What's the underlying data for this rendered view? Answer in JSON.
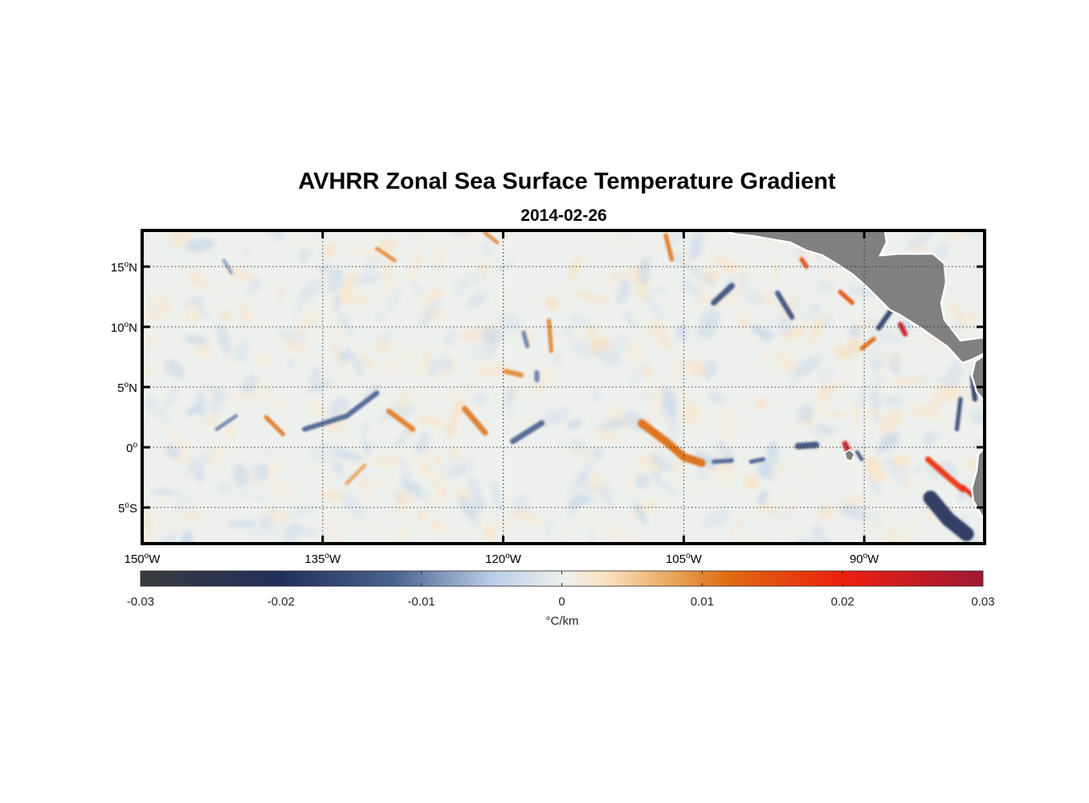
{
  "chart_data": {
    "type": "heatmap",
    "title": "AVHRR Zonal Sea Surface Temperature Gradient",
    "subtitle": "2014-02-26",
    "x_axis": {
      "range": [
        -150,
        -80
      ],
      "ticks": [
        {
          "value": -150,
          "label": "150",
          "suffix": "W"
        },
        {
          "value": -135,
          "label": "135",
          "suffix": "W"
        },
        {
          "value": -120,
          "label": "120",
          "suffix": "W"
        },
        {
          "value": -105,
          "label": "105",
          "suffix": "W"
        },
        {
          "value": -90,
          "label": "90",
          "suffix": "W"
        }
      ]
    },
    "y_axis": {
      "range": [
        -8,
        18
      ],
      "ticks": [
        {
          "value": 15,
          "label": "15",
          "suffix": "N"
        },
        {
          "value": 10,
          "label": "10",
          "suffix": "N"
        },
        {
          "value": 5,
          "label": "5",
          "suffix": "N"
        },
        {
          "value": 0,
          "label": "0",
          "suffix": ""
        },
        {
          "value": -5,
          "label": "5",
          "suffix": "S"
        }
      ]
    },
    "colorbar": {
      "label": "°C/km",
      "range": [
        -0.03,
        0.03
      ],
      "ticks": [
        {
          "value": -0.03,
          "label": "-0.03"
        },
        {
          "value": -0.02,
          "label": "-0.02"
        },
        {
          "value": -0.01,
          "label": "-0.01"
        },
        {
          "value": 0,
          "label": "0"
        },
        {
          "value": 0.01,
          "label": "0.01"
        },
        {
          "value": 0.02,
          "label": "0.02"
        },
        {
          "value": 0.03,
          "label": "0.03"
        }
      ],
      "stops": [
        {
          "value": -0.03,
          "color": "#3a3b3f"
        },
        {
          "value": -0.02,
          "color": "#22305a"
        },
        {
          "value": -0.012,
          "color": "#4a628f"
        },
        {
          "value": -0.005,
          "color": "#b9cde6"
        },
        {
          "value": 0,
          "color": "#eef0ed"
        },
        {
          "value": 0.003,
          "color": "#fbe3c4"
        },
        {
          "value": 0.008,
          "color": "#e8a45a"
        },
        {
          "value": 0.012,
          "color": "#de6a10"
        },
        {
          "value": 0.02,
          "color": "#ee1f10"
        },
        {
          "value": 0.03,
          "color": "#9e1837"
        }
      ]
    },
    "features": [
      {
        "name": "tongue-110-1",
        "type": "pos",
        "value": 0.012,
        "points": [
          [
            -108.5,
            2
          ],
          [
            -106.5,
            0.5
          ],
          [
            -105,
            -0.8
          ],
          [
            -103.5,
            -1.3
          ]
        ],
        "width": 0.55
      },
      {
        "name": "tongue-110-2",
        "type": "neg",
        "value": -0.012,
        "points": [
          [
            -102.5,
            -1.2
          ],
          [
            -101,
            -1.1
          ]
        ],
        "width": 0.3
      },
      {
        "name": "front-125",
        "type": "neg",
        "value": -0.012,
        "points": [
          [
            -136.5,
            1.5
          ],
          [
            -133,
            2.6
          ],
          [
            -130.5,
            4.5
          ]
        ],
        "width": 0.35
      },
      {
        "name": "front-126",
        "type": "pos",
        "value": 0.011,
        "points": [
          [
            -129.5,
            3.0
          ],
          [
            -127.5,
            1.5
          ]
        ],
        "width": 0.35
      },
      {
        "name": "front-139",
        "type": "pos",
        "value": 0.011,
        "points": [
          [
            -139.7,
            2.5
          ],
          [
            -138.3,
            1.1
          ]
        ],
        "width": 0.3
      },
      {
        "name": "front-141",
        "type": "neg",
        "value": -0.01,
        "points": [
          [
            -143.8,
            1.5
          ],
          [
            -142.2,
            2.6
          ]
        ],
        "width": 0.25
      },
      {
        "name": "front-123",
        "type": "pos",
        "value": 0.011,
        "points": [
          [
            -123.2,
            3.2
          ],
          [
            -121.5,
            1.2
          ]
        ],
        "width": 0.4
      },
      {
        "name": "front-118",
        "type": "neg",
        "value": -0.012,
        "points": [
          [
            -119.2,
            0.5
          ],
          [
            -116.8,
            2.0
          ]
        ],
        "width": 0.4
      },
      {
        "name": "front-117",
        "type": "neg",
        "value": -0.01,
        "points": [
          [
            -117.2,
            6.2
          ],
          [
            -117.2,
            5.6
          ]
        ],
        "width": 0.35
      },
      {
        "name": "front-119",
        "type": "pos",
        "value": 0.01,
        "points": [
          [
            -119.8,
            6.3
          ],
          [
            -118.5,
            6.0
          ]
        ],
        "width": 0.35
      },
      {
        "name": "front-118b",
        "type": "neg",
        "value": -0.01,
        "points": [
          [
            -118.3,
            9.5
          ],
          [
            -118.0,
            8.4
          ]
        ],
        "width": 0.3
      },
      {
        "name": "front-116",
        "type": "pos",
        "value": 0.01,
        "points": [
          [
            -116.2,
            10.5
          ],
          [
            -116.0,
            8.0
          ]
        ],
        "width": 0.3
      },
      {
        "name": "front-103",
        "type": "neg",
        "value": -0.015,
        "points": [
          [
            -102.5,
            12.0
          ],
          [
            -101.0,
            13.4
          ]
        ],
        "width": 0.4
      },
      {
        "name": "front-97",
        "type": "neg",
        "value": -0.015,
        "points": [
          [
            -97.2,
            12.8
          ],
          [
            -96.0,
            10.8
          ]
        ],
        "width": 0.35
      },
      {
        "name": "front-96",
        "type": "neg",
        "value": -0.015,
        "points": [
          [
            -95.5,
            0.1
          ],
          [
            -94.0,
            0.2
          ]
        ],
        "width": 0.45
      },
      {
        "name": "front-99",
        "type": "neg",
        "value": -0.012,
        "points": [
          [
            -99.4,
            -1.2
          ],
          [
            -98.4,
            -1.0
          ]
        ],
        "width": 0.3
      },
      {
        "name": "front-91",
        "type": "pos",
        "value": 0.025,
        "points": [
          [
            -91.6,
            0.3
          ],
          [
            -91.2,
            -0.6
          ]
        ],
        "width": 0.4
      },
      {
        "name": "front-90",
        "type": "neg",
        "value": -0.015,
        "points": [
          [
            -90.6,
            -0.4
          ],
          [
            -90.2,
            -1.0
          ]
        ],
        "width": 0.25
      },
      {
        "name": "front-86",
        "type": "pos",
        "value": 0.018,
        "points": [
          [
            -84.7,
            -1.0
          ],
          [
            -83.0,
            -2.5
          ],
          [
            -81.8,
            -3.5
          ]
        ],
        "width": 0.4
      },
      {
        "name": "front-82",
        "type": "pos",
        "value": 0.02,
        "points": [
          [
            -81.8,
            -3.3
          ],
          [
            -81.0,
            -4.0
          ]
        ],
        "width": 0.3
      },
      {
        "name": "front-84",
        "type": "neg",
        "value": -0.02,
        "points": [
          [
            -84.5,
            -4.2
          ],
          [
            -83.0,
            -6.0
          ],
          [
            -81.5,
            -7.2
          ]
        ],
        "width": 1.0
      },
      {
        "name": "front-82b",
        "type": "neg",
        "value": -0.015,
        "points": [
          [
            -82.3,
            1.5
          ],
          [
            -82.0,
            4.0
          ]
        ],
        "width": 0.3
      },
      {
        "name": "front-81",
        "type": "neg",
        "value": -0.018,
        "points": [
          [
            -81.0,
            5.8
          ],
          [
            -80.8,
            4.0
          ]
        ],
        "width": 0.35
      },
      {
        "name": "front-87",
        "type": "pos",
        "value": 0.025,
        "points": [
          [
            -87.0,
            10.2
          ],
          [
            -86.6,
            9.4
          ]
        ],
        "width": 0.35
      },
      {
        "name": "front-88",
        "type": "neg",
        "value": -0.018,
        "points": [
          [
            -88.8,
            9.9
          ],
          [
            -87.6,
            11.6
          ]
        ],
        "width": 0.35
      },
      {
        "name": "front-90b",
        "type": "pos",
        "value": 0.012,
        "points": [
          [
            -90.2,
            8.2
          ],
          [
            -89.2,
            9.0
          ]
        ],
        "width": 0.3
      },
      {
        "name": "front-93",
        "type": "pos",
        "value": 0.015,
        "points": [
          [
            -92.0,
            12.9
          ],
          [
            -91.0,
            12.0
          ]
        ],
        "width": 0.3
      },
      {
        "name": "front-95",
        "type": "pos",
        "value": 0.015,
        "points": [
          [
            -95.2,
            15.6
          ],
          [
            -94.8,
            15.0
          ]
        ],
        "width": 0.3
      },
      {
        "name": "front-107",
        "type": "pos",
        "value": 0.011,
        "points": [
          [
            -106.5,
            17.6
          ],
          [
            -106.0,
            15.6
          ]
        ],
        "width": 0.3
      },
      {
        "name": "front-121",
        "type": "pos",
        "value": 0.01,
        "points": [
          [
            -121.5,
            17.8
          ],
          [
            -120.5,
            17.0
          ]
        ],
        "width": 0.25
      },
      {
        "name": "front-130",
        "type": "pos",
        "value": 0.01,
        "points": [
          [
            -130.5,
            16.5
          ],
          [
            -129.0,
            15.5
          ]
        ],
        "width": 0.25
      },
      {
        "name": "front-129",
        "type": "pos",
        "value": 0.008,
        "points": [
          [
            -131.5,
            -1.5
          ],
          [
            -133.0,
            -3.0
          ]
        ],
        "width": 0.25
      },
      {
        "name": "front-140",
        "type": "neg",
        "value": -0.008,
        "points": [
          [
            -143.2,
            15.5
          ],
          [
            -142.6,
            14.5
          ]
        ],
        "width": 0.25
      }
    ],
    "land_color": "#808080"
  }
}
